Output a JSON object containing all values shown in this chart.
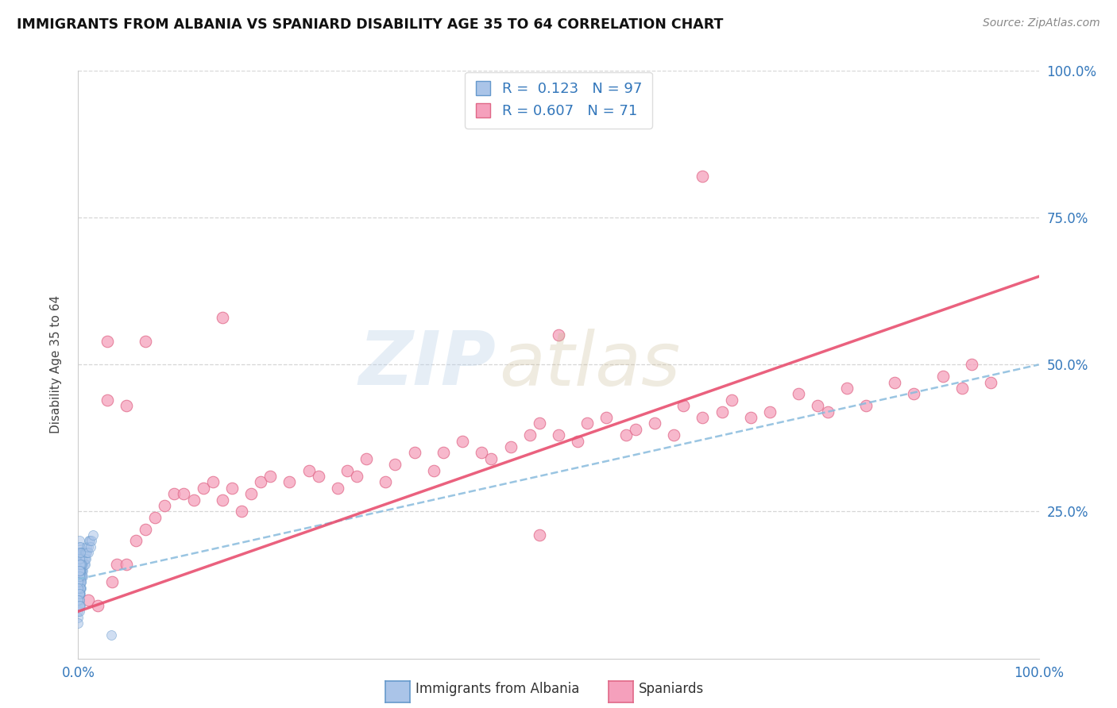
{
  "title": "IMMIGRANTS FROM ALBANIA VS SPANIARD DISABILITY AGE 35 TO 64 CORRELATION CHART",
  "source": "Source: ZipAtlas.com",
  "ylabel": "Disability Age 35 to 64",
  "legend_label1": "Immigrants from Albania",
  "legend_label2": "Spaniards",
  "R1": 0.123,
  "N1": 97,
  "R2": 0.607,
  "N2": 71,
  "color_blue": "#aac4e8",
  "color_pink": "#f5a0bc",
  "edge_blue": "#6699cc",
  "edge_pink": "#e06888",
  "line_blue_color": "#88bbdd",
  "line_pink_color": "#e85070",
  "albania_x": [
    0.001,
    0.001,
    0.001,
    0.001,
    0.001,
    0.001,
    0.001,
    0.001,
    0.001,
    0.001,
    0.002,
    0.002,
    0.002,
    0.002,
    0.002,
    0.002,
    0.002,
    0.002,
    0.002,
    0.003,
    0.003,
    0.003,
    0.003,
    0.003,
    0.003,
    0.003,
    0.004,
    0.004,
    0.004,
    0.004,
    0.004,
    0.005,
    0.005,
    0.005,
    0.005,
    0.006,
    0.006,
    0.006,
    0.007,
    0.007,
    0.007,
    0.008,
    0.008,
    0.009,
    0.009,
    0.01,
    0.01,
    0.011,
    0.012,
    0.013,
    0.014,
    0.015,
    0.0,
    0.0,
    0.0,
    0.0,
    0.0,
    0.001,
    0.002,
    0.003,
    0.004,
    0.005,
    0.001,
    0.002,
    0.003,
    0.002,
    0.003,
    0.001,
    0.002,
    0.003,
    0.001,
    0.002,
    0.001,
    0.001,
    0.002,
    0.001,
    0.001,
    0.0,
    0.0,
    0.0,
    0.001,
    0.002,
    0.001,
    0.001,
    0.002,
    0.001,
    0.001,
    0.0,
    0.0,
    0.001,
    0.0,
    0.001,
    0.034,
    0.002,
    0.001
  ],
  "albania_y": [
    0.14,
    0.15,
    0.16,
    0.17,
    0.18,
    0.13,
    0.12,
    0.19,
    0.11,
    0.2,
    0.15,
    0.16,
    0.14,
    0.17,
    0.13,
    0.18,
    0.12,
    0.19,
    0.11,
    0.16,
    0.15,
    0.17,
    0.14,
    0.18,
    0.13,
    0.12,
    0.17,
    0.16,
    0.15,
    0.18,
    0.14,
    0.17,
    0.16,
    0.18,
    0.15,
    0.17,
    0.16,
    0.18,
    0.18,
    0.17,
    0.16,
    0.18,
    0.17,
    0.18,
    0.19,
    0.19,
    0.18,
    0.2,
    0.2,
    0.19,
    0.2,
    0.21,
    0.1,
    0.11,
    0.12,
    0.09,
    0.13,
    0.13,
    0.14,
    0.15,
    0.16,
    0.14,
    0.12,
    0.13,
    0.14,
    0.15,
    0.16,
    0.11,
    0.12,
    0.13,
    0.14,
    0.15,
    0.1,
    0.11,
    0.12,
    0.09,
    0.1,
    0.08,
    0.07,
    0.06,
    0.08,
    0.09,
    0.16,
    0.17,
    0.18,
    0.15,
    0.14,
    0.13,
    0.12,
    0.11,
    0.1,
    0.09,
    0.04,
    0.16,
    0.15
  ],
  "spaniard_x": [
    0.01,
    0.02,
    0.03,
    0.035,
    0.04,
    0.05,
    0.06,
    0.07,
    0.08,
    0.09,
    0.1,
    0.11,
    0.12,
    0.13,
    0.14,
    0.15,
    0.16,
    0.17,
    0.18,
    0.19,
    0.2,
    0.22,
    0.24,
    0.25,
    0.27,
    0.28,
    0.29,
    0.3,
    0.32,
    0.33,
    0.35,
    0.37,
    0.38,
    0.4,
    0.42,
    0.43,
    0.45,
    0.47,
    0.48,
    0.5,
    0.52,
    0.53,
    0.55,
    0.57,
    0.58,
    0.6,
    0.62,
    0.63,
    0.65,
    0.67,
    0.68,
    0.7,
    0.72,
    0.75,
    0.77,
    0.78,
    0.8,
    0.82,
    0.85,
    0.87,
    0.9,
    0.92,
    0.93,
    0.95,
    0.03,
    0.05,
    0.07,
    0.15,
    0.48,
    0.5,
    0.65
  ],
  "spaniard_y": [
    0.1,
    0.09,
    0.54,
    0.13,
    0.16,
    0.16,
    0.2,
    0.22,
    0.24,
    0.26,
    0.28,
    0.28,
    0.27,
    0.29,
    0.3,
    0.27,
    0.29,
    0.25,
    0.28,
    0.3,
    0.31,
    0.3,
    0.32,
    0.31,
    0.29,
    0.32,
    0.31,
    0.34,
    0.3,
    0.33,
    0.35,
    0.32,
    0.35,
    0.37,
    0.35,
    0.34,
    0.36,
    0.38,
    0.4,
    0.38,
    0.37,
    0.4,
    0.41,
    0.38,
    0.39,
    0.4,
    0.38,
    0.43,
    0.41,
    0.42,
    0.44,
    0.41,
    0.42,
    0.45,
    0.43,
    0.42,
    0.46,
    0.43,
    0.47,
    0.45,
    0.48,
    0.46,
    0.5,
    0.47,
    0.44,
    0.43,
    0.54,
    0.58,
    0.21,
    0.55,
    0.82
  ],
  "xlim": [
    0.0,
    1.0
  ],
  "ylim": [
    0.0,
    1.0
  ],
  "grid_vals": [
    0.25,
    0.5,
    0.75,
    1.0
  ]
}
